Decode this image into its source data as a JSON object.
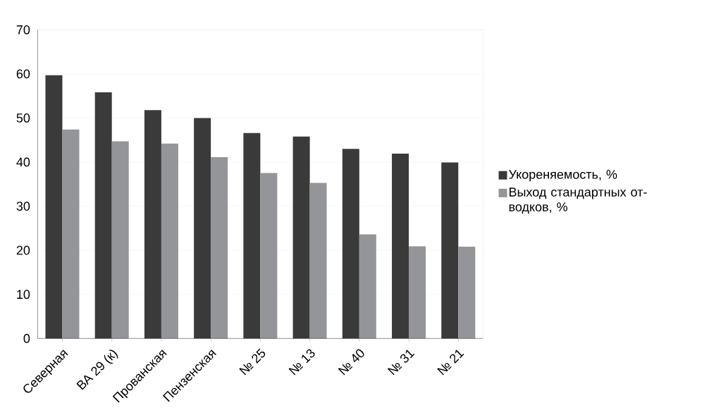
{
  "chart_data": {
    "type": "bar",
    "categories": [
      "Северная",
      "ВА 29 (к)",
      "Прованская",
      "Пензенская",
      "№ 25",
      "№ 13",
      "№ 40",
      "№ 31",
      "№ 21"
    ],
    "series": [
      {
        "name": "Укореняемость, %",
        "color": "#3a3a3a",
        "values": [
          59.7,
          55.8,
          51.8,
          50.0,
          46.6,
          45.8,
          43.0,
          41.9,
          39.9
        ]
      },
      {
        "name": "Выход стандартных от-водков, %",
        "color": "#939598",
        "values": [
          47.4,
          44.7,
          44.2,
          41.1,
          37.5,
          35.3,
          23.6,
          20.9,
          20.8
        ]
      }
    ],
    "ylim": [
      0,
      70
    ],
    "yticks": [
      0,
      10,
      20,
      30,
      40,
      50,
      60,
      70
    ],
    "grid": "y",
    "legend": "right"
  }
}
